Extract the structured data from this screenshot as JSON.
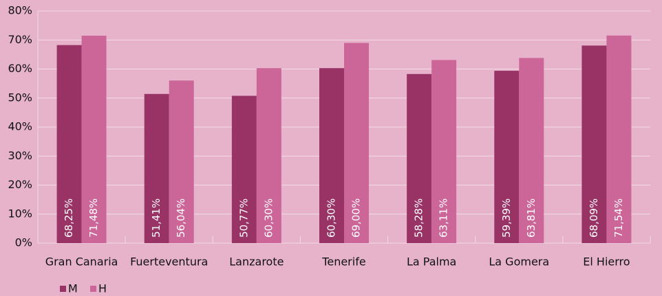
{
  "chart_data": {
    "type": "bar",
    "categories": [
      "Gran Canaria",
      "Fuerteventura",
      "Lanzarote",
      "Tenerife",
      "La Palma",
      "La Gomera",
      "El Hierro"
    ],
    "series": [
      {
        "name": "M",
        "color": "#993366",
        "values": [
          68.25,
          51.41,
          50.77,
          60.3,
          58.28,
          59.39,
          68.09
        ],
        "value_labels": [
          "68,25%",
          "51,41%",
          "50,77%",
          "60,30%",
          "58,28%",
          "59,39%",
          "68,09%"
        ]
      },
      {
        "name": "H",
        "color": "#cc6699",
        "values": [
          71.48,
          56.04,
          60.3,
          69.0,
          63.11,
          63.81,
          71.54
        ],
        "value_labels": [
          "71,48%",
          "56,04%",
          "60,30%",
          "69,00%",
          "63,11%",
          "63,81%",
          "71,54%"
        ]
      }
    ],
    "ylim": [
      0,
      80
    ],
    "yticks": [
      {
        "value": 0,
        "label": "0%"
      },
      {
        "value": 10,
        "label": "10%"
      },
      {
        "value": 20,
        "label": "20%"
      },
      {
        "value": 30,
        "label": "30%"
      },
      {
        "value": 40,
        "label": "40%"
      },
      {
        "value": 50,
        "label": "50%"
      },
      {
        "value": 60,
        "label": "60%"
      },
      {
        "value": 70,
        "label": "70%"
      },
      {
        "value": 80,
        "label": "80%"
      }
    ],
    "grid": true
  }
}
